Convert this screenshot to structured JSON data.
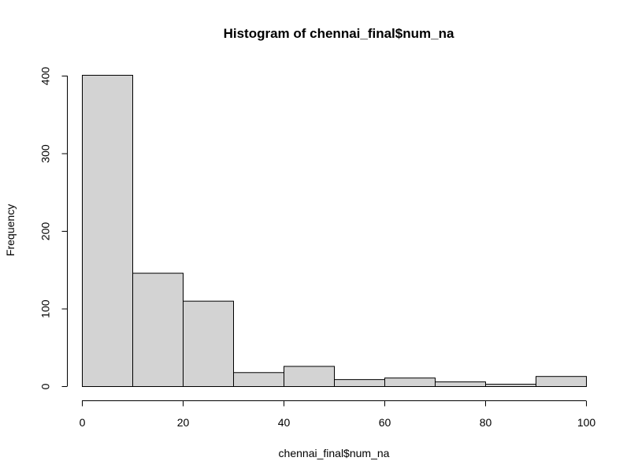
{
  "chart_data": {
    "type": "bar",
    "title": "Histogram of chennai_final$num_na",
    "xlabel": "chennai_final$num_na",
    "ylabel": "Frequency",
    "bins": [
      {
        "from": 0,
        "to": 10,
        "count": 401
      },
      {
        "from": 10,
        "to": 20,
        "count": 146
      },
      {
        "from": 20,
        "to": 30,
        "count": 110
      },
      {
        "from": 30,
        "to": 40,
        "count": 18
      },
      {
        "from": 40,
        "to": 50,
        "count": 26
      },
      {
        "from": 50,
        "to": 60,
        "count": 9
      },
      {
        "from": 60,
        "to": 70,
        "count": 11
      },
      {
        "from": 70,
        "to": 80,
        "count": 6
      },
      {
        "from": 80,
        "to": 90,
        "count": 3
      },
      {
        "from": 90,
        "to": 100,
        "count": 13
      }
    ],
    "xlim": [
      0,
      100
    ],
    "ylim": [
      0,
      400
    ],
    "xticks": [
      0,
      20,
      40,
      60,
      80,
      100
    ],
    "yticks": [
      0,
      100,
      200,
      300,
      400
    ],
    "grid": false,
    "bar_fill": "#d3d3d3",
    "bar_stroke": "#000000"
  }
}
